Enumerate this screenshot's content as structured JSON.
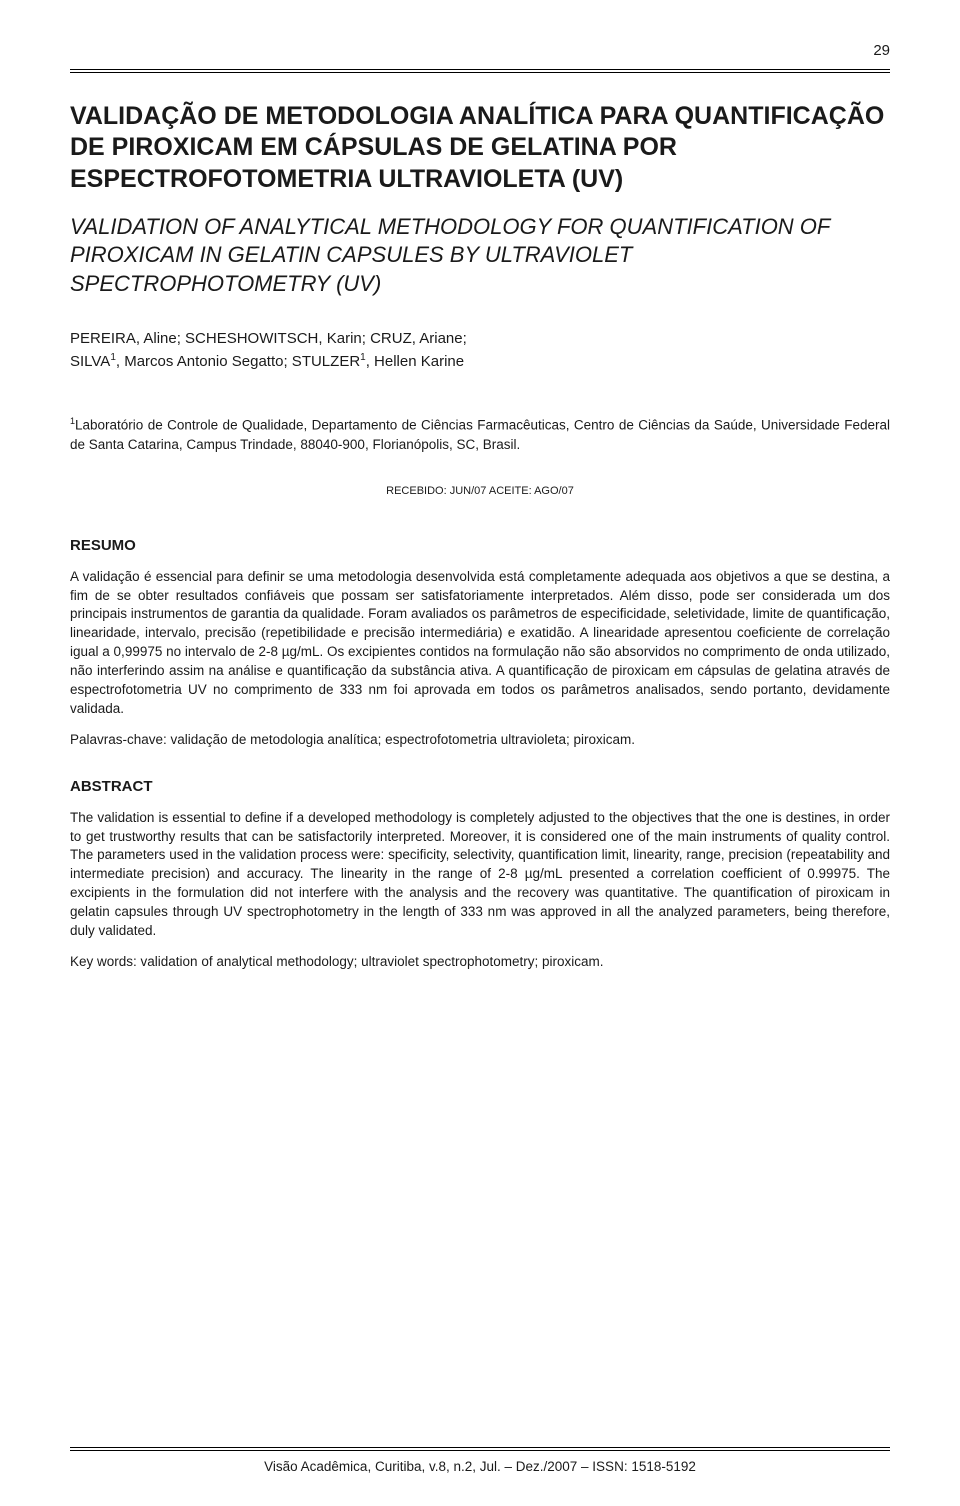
{
  "page_number": "29",
  "title_pt": "VALIDAÇÃO DE METODOLOGIA ANALÍTICA PARA QUANTIFICAÇÃO DE PIROXICAM EM CÁPSULAS DE GELATINA POR ESPECTROFOTOMETRIA ULTRAVIOLETA (UV)",
  "title_en": "VALIDATION OF ANALYTICAL METHODOLOGY FOR QUANTIFICATION OF PIROXICAM IN GELATIN CAPSULES BY ULTRAVIOLET SPECTROPHOTOMETRY (UV)",
  "authors_line1": "PEREIRA, Aline; SCHESHOWITSCH, Karin; CRUZ, Ariane;",
  "authors_line2_pre": "SILVA",
  "authors_line2_mid": ", Marcos Antonio Segatto; STULZER",
  "authors_line2_post": ", Hellen Karine",
  "affil_sup": "1",
  "affiliation": "Laboratório de Controle de Qualidade, Departamento de Ciências Farmacêuticas, Centro de Ciências da Saúde, Universidade Federal de Santa Catarina, Campus Trindade, 88040-900, Florianópolis, SC, Brasil.",
  "dates": "RECEBIDO: JUN/07   ACEITE: AGO/07",
  "resumo_head": "RESUMO",
  "resumo_body": "A validação é essencial para definir se uma metodologia desenvolvida está completamente adequada aos objetivos a que se destina, a fim de se obter resultados confiáveis que possam ser satisfatoriamente interpretados. Além disso, pode ser considerada um dos principais instrumentos de garantia da qualidade. Foram avaliados os parâmetros de especificidade, seletividade, limite de quantificação, linearidade, intervalo, precisão (repetibilidade e precisão intermediária) e exatidão. A linearidade apresentou coeficiente de correlação igual a 0,99975 no intervalo de 2-8 µg/mL. Os excipientes contidos na formulação não são absorvidos no comprimento de onda utilizado, não interferindo assim na análise e quantificação da substância ativa. A quantificação de piroxicam em cápsulas de gelatina através de espectrofotometria UV no comprimento de 333 nm foi aprovada em todos os parâmetros analisados, sendo portanto, devidamente validada.",
  "resumo_kw": "Palavras-chave: validação de metodologia analítica; espectrofotometria ultravioleta; piroxicam.",
  "abstract_head": "ABSTRACT",
  "abstract_body": "The validation is essential to define if a developed methodology is completely adjusted to the objectives that the one is destines, in order to get trustworthy results that can be satisfactorily interpreted. Moreover, it is considered one of the main instruments of quality control. The parameters used in the validation process were: specificity, selectivity, quantification limit, linearity, range, precision (repeatability and intermediate precision) and accuracy. The linearity in the range of 2-8 µg/mL presented a correlation coefficient of 0.99975. The excipients in the formulation did not interfere with the analysis and the recovery was quantitative. The quantification of piroxicam in gelatin capsules through UV spectrophotometry in the length of 333 nm was approved in all the analyzed parameters, being therefore, duly validated.",
  "abstract_kw": "Key words: validation of analytical methodology; ultraviolet spectrophotometry; piroxicam.",
  "footer": "Visão Acadêmica, Curitiba, v.8, n.2, Jul. – Dez./2007 – ISSN: 1518-5192"
}
